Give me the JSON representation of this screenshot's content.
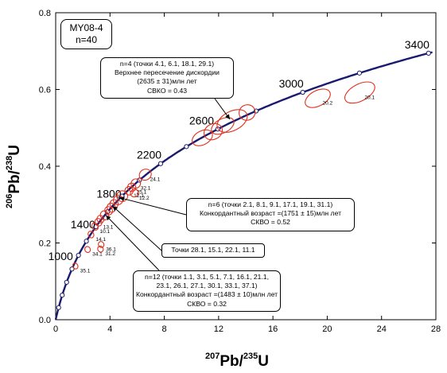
{
  "sample": {
    "name": "MY08-4",
    "count": "n=40"
  },
  "axes": {
    "x_label": {
      "pre": "207",
      "base": "Pb/",
      "pre2": "235",
      "tail": "U"
    },
    "y_label": {
      "pre": "206",
      "base": "Pb/",
      "pre2": "238",
      "tail": "U"
    },
    "x_ticks": [
      "0",
      "4",
      "8",
      "12",
      "16",
      "20",
      "24",
      "28"
    ],
    "y_ticks": [
      "0.0",
      "0.2",
      "0.4",
      "0.6",
      "0.8"
    ]
  },
  "callouts": {
    "upper": [
      "n=4 (точки 4.1, 6.1, 18.1, 29.1)",
      "Верхнее пересечение дискордии",
      "(2635 ± 31)млн  лет",
      "СВКО = 0.43"
    ],
    "concordia1": [
      "n=6 (точки 2.1, 8.1, 9.1, 17.1, 19.1, 31.1)",
      "Конкордантный возраст =(1751 ± 15)млн  лет",
      "СКВО = 0.52"
    ],
    "points": [
      "Точки 28.1, 15.1, 22.1, 11.1"
    ],
    "concordia2": [
      "n=12 (точки 1.1, 3.1, 5.1, 7.1, 16.1, 21.1,",
      "23.1, 26.1, 27.1, 30.1, 33.1, 37.1)",
      "Конкордантный возраст =(1483 ± 10)млн  лет",
      "СКВО = 0.32"
    ]
  },
  "chart_data": {
    "type": "scatter",
    "title": "",
    "xlabel": "207Pb/235U",
    "ylabel": "206Pb/238U",
    "xlim": [
      0,
      28
    ],
    "ylim": [
      0,
      0.8
    ],
    "grid": false,
    "concordia_age_labels": [
      {
        "label": "1000",
        "age_ma": 1000
      },
      {
        "label": "1400",
        "age_ma": 1400
      },
      {
        "label": "1800",
        "age_ma": 1800
      },
      {
        "label": "2200",
        "age_ma": 2200
      },
      {
        "label": "2600",
        "age_ma": 2600
      },
      {
        "label": "3000",
        "age_ma": 3000
      },
      {
        "label": "3400",
        "age_ma": 3400
      }
    ],
    "concordia_marker_ages_ma": [
      200,
      400,
      600,
      800,
      1000,
      1200,
      1400,
      1600,
      1800,
      2000,
      2200,
      2400,
      2600,
      2800,
      3000,
      3200,
      3400
    ],
    "discordia_upper_age_ma": 2635,
    "ellipses": [
      {
        "label": "20.1",
        "x": 22.4,
        "y": 0.592,
        "rx": 1.2,
        "ry": 0.022
      },
      {
        "label": "20.2",
        "x": 19.3,
        "y": 0.577,
        "rx": 1.0,
        "ry": 0.02
      },
      {
        "label": "",
        "x": 14.1,
        "y": 0.54,
        "rx": 0.6,
        "ry": 0.02
      },
      {
        "label": "",
        "x": 13.0,
        "y": 0.518,
        "rx": 1.2,
        "ry": 0.025
      },
      {
        "label": "",
        "x": 12.3,
        "y": 0.505,
        "rx": 0.9,
        "ry": 0.018
      },
      {
        "label": "",
        "x": 11.6,
        "y": 0.49,
        "rx": 0.7,
        "ry": 0.02
      },
      {
        "label": "",
        "x": 10.8,
        "y": 0.474,
        "rx": 0.8,
        "ry": 0.018
      },
      {
        "label": "24.1",
        "x": 6.6,
        "y": 0.378,
        "rx": 0.45,
        "ry": 0.014
      },
      {
        "label": "32.1",
        "x": 5.9,
        "y": 0.355,
        "rx": 0.35,
        "ry": 0.012
      },
      {
        "label": "25.1",
        "x": 5.6,
        "y": 0.345,
        "rx": 0.3,
        "ry": 0.011
      },
      {
        "label": "12.1",
        "x": 5.4,
        "y": 0.336,
        "rx": 0.3,
        "ry": 0.011
      },
      {
        "label": "12.2",
        "x": 5.8,
        "y": 0.33,
        "rx": 0.3,
        "ry": 0.01
      },
      {
        "label": "",
        "x": 4.9,
        "y": 0.322,
        "rx": 0.4,
        "ry": 0.014
      },
      {
        "label": "",
        "x": 4.6,
        "y": 0.312,
        "rx": 0.35,
        "ry": 0.012
      },
      {
        "label": "",
        "x": 4.3,
        "y": 0.302,
        "rx": 0.3,
        "ry": 0.011
      },
      {
        "label": "",
        "x": 4.1,
        "y": 0.292,
        "rx": 0.3,
        "ry": 0.012
      },
      {
        "label": "",
        "x": 3.9,
        "y": 0.284,
        "rx": 0.28,
        "ry": 0.011
      },
      {
        "label": "",
        "x": 3.6,
        "y": 0.272,
        "rx": 0.3,
        "ry": 0.012
      },
      {
        "label": "",
        "x": 3.3,
        "y": 0.262,
        "rx": 0.25,
        "ry": 0.01
      },
      {
        "label": "13.1",
        "x": 3.15,
        "y": 0.254,
        "rx": 0.25,
        "ry": 0.01
      },
      {
        "label": "10.1",
        "x": 2.9,
        "y": 0.243,
        "rx": 0.22,
        "ry": 0.01
      },
      {
        "label": "14.1",
        "x": 2.6,
        "y": 0.222,
        "rx": 0.2,
        "ry": 0.009
      },
      {
        "label": "36.1",
        "x": 3.35,
        "y": 0.196,
        "rx": 0.2,
        "ry": 0.008
      },
      {
        "label": "31.2",
        "x": 3.3,
        "y": 0.184,
        "rx": 0.2,
        "ry": 0.008
      },
      {
        "label": "34.1",
        "x": 2.35,
        "y": 0.183,
        "rx": 0.2,
        "ry": 0.008
      },
      {
        "label": "35.1",
        "x": 1.45,
        "y": 0.14,
        "rx": 0.18,
        "ry": 0.008
      }
    ]
  }
}
